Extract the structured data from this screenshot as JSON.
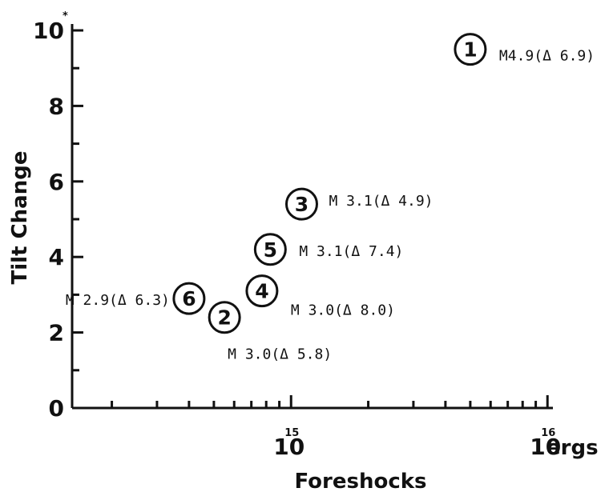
{
  "chart_data": {
    "type": "scatter",
    "xlabel": "Foreshocks",
    "ylabel": "Tilt Change",
    "x_unit": "ergs",
    "x_scale": "log",
    "xlim": [
      140000000000000.0,
      1.05e+16
    ],
    "ylim": [
      0,
      10
    ],
    "y_ticks": [
      0,
      2,
      4,
      6,
      8,
      10
    ],
    "y_tick_labels": [
      "0",
      "2",
      "4",
      "6",
      "8",
      "10"
    ],
    "y_top_exponent": "*",
    "x_tick_labels": [
      {
        "base": "10",
        "exp": "15",
        "value": 1000000000000000.0
      },
      {
        "base": "10",
        "exp": "16",
        "value": 1e+16
      }
    ],
    "grid": false,
    "points": [
      {
        "id": "1",
        "x": 5000000000000000.0,
        "y": 9.5,
        "label": "M4.9(Δ 6.9)"
      },
      {
        "id": "2",
        "x": 550000000000000.0,
        "y": 2.4,
        "label": "M 3.0(Δ 5.8)"
      },
      {
        "id": "3",
        "x": 1100000000000000.0,
        "y": 5.4,
        "label": "M 3.1(Δ 4.9)"
      },
      {
        "id": "4",
        "x": 770000000000000.0,
        "y": 3.1,
        "label": "M 3.0(Δ 8.0)"
      },
      {
        "id": "5",
        "x": 830000000000000.0,
        "y": 4.2,
        "label": "M 3.1(Δ 7.4)"
      },
      {
        "id": "6",
        "x": 400000000000000.0,
        "y": 2.9,
        "label": "M 2.9(Δ 6.3)"
      }
    ]
  }
}
